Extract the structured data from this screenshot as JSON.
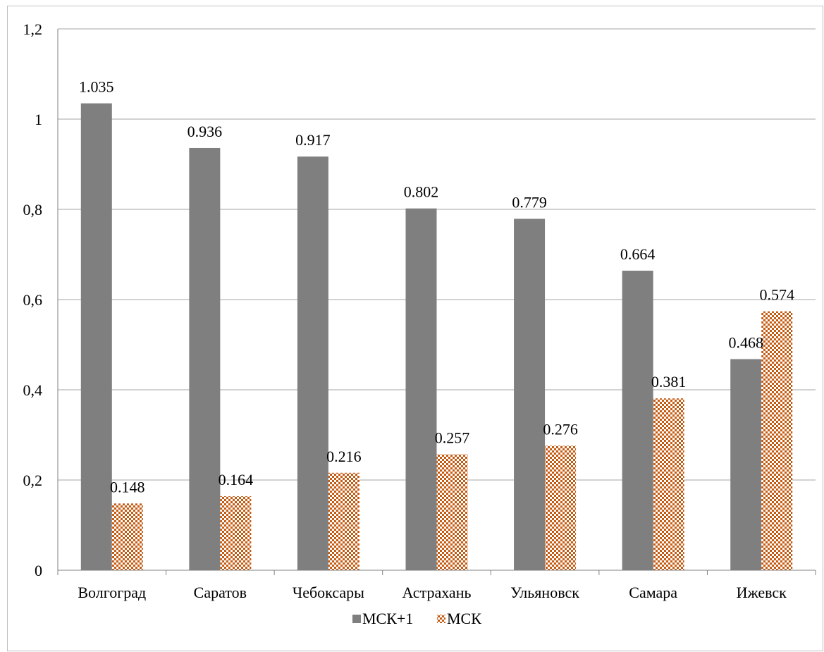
{
  "chart_data": {
    "type": "bar",
    "categories": [
      "Волгоград",
      "Саратов",
      "Чебоксары",
      "Астрахань",
      "Ульяновск",
      "Самара",
      "Ижевск"
    ],
    "series": [
      {
        "name": "МСК+1",
        "values": [
          1.035,
          0.936,
          0.917,
          0.802,
          0.779,
          0.664,
          0.468
        ],
        "labels": [
          "1.035",
          "0.936",
          "0.917",
          "0.802",
          "0.779",
          "0.664",
          "0.468"
        ]
      },
      {
        "name": "МСК",
        "values": [
          0.148,
          0.164,
          0.216,
          0.257,
          0.276,
          0.381,
          0.574
        ],
        "labels": [
          "0.148",
          "0.164",
          "0.216",
          "0.257",
          "0.276",
          "0.381",
          "0.574"
        ]
      }
    ],
    "ylim": [
      0,
      1.2
    ],
    "yticks": [
      0,
      0.2,
      0.4,
      0.6,
      0.8,
      1,
      1.2
    ],
    "ytick_labels": [
      "0",
      "0,2",
      "0,4",
      "0,6",
      "0,8",
      "1",
      "1,2"
    ],
    "grid": true,
    "legend_position": "bottom",
    "colors": {
      "series1": "#7f7f7f",
      "series2_fg": "#c55a11",
      "series2_bg": "#ffffff",
      "grid": "#a6a6a6",
      "axis": "#808080"
    },
    "series_patterns": [
      "solid",
      "checkerboard"
    ],
    "title": "",
    "xlabel": "",
    "ylabel": ""
  }
}
